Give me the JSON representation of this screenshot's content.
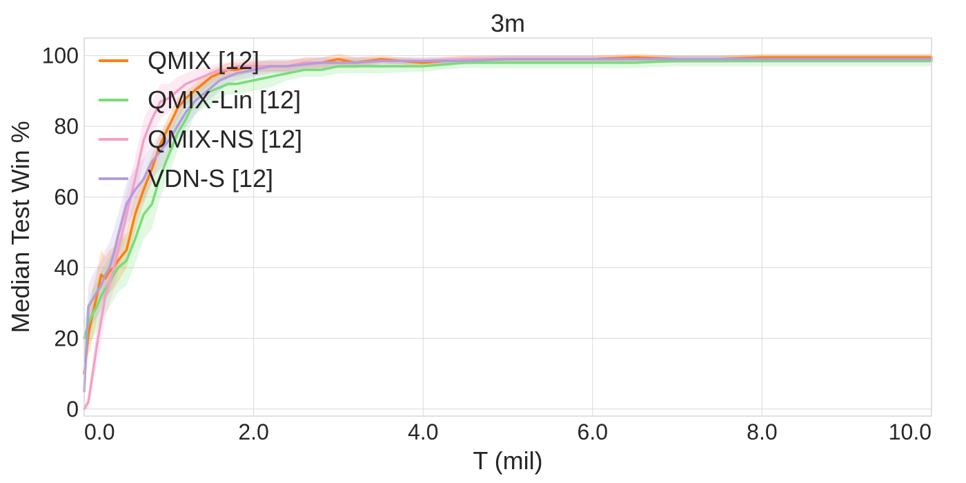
{
  "chart_data": {
    "type": "line",
    "title": "3m",
    "xlabel": "T (mil)",
    "ylabel": "Median Test Win %",
    "xlim": [
      0,
      10
    ],
    "ylim": [
      -2,
      105
    ],
    "xticks": [
      {
        "value": 0,
        "label": "0.0"
      },
      {
        "value": 2,
        "label": "2.0"
      },
      {
        "value": 4,
        "label": "4.0"
      },
      {
        "value": 6,
        "label": "6.0"
      },
      {
        "value": 8,
        "label": "8.0"
      },
      {
        "value": 10,
        "label": "10.0"
      }
    ],
    "yticks": [
      {
        "value": 0,
        "label": "0"
      },
      {
        "value": 20,
        "label": "20"
      },
      {
        "value": 40,
        "label": "40"
      },
      {
        "value": 60,
        "label": "60"
      },
      {
        "value": 80,
        "label": "80"
      },
      {
        "value": 100,
        "label": "100"
      }
    ],
    "grid": true,
    "legend_position": "top-left",
    "series": [
      {
        "name": "QMIX [12]",
        "color": "#ff7f0e",
        "x": [
          0,
          0.05,
          0.1,
          0.15,
          0.2,
          0.25,
          0.3,
          0.35,
          0.4,
          0.5,
          0.6,
          0.7,
          0.8,
          0.9,
          1.0,
          1.1,
          1.2,
          1.3,
          1.4,
          1.5,
          1.6,
          1.7,
          1.8,
          2.0,
          2.2,
          2.4,
          2.6,
          2.8,
          3.0,
          3.2,
          3.5,
          4.0,
          4.5,
          5.0,
          5.5,
          6.0,
          6.5,
          7.0,
          7.5,
          8.0,
          8.5,
          9.0,
          9.5,
          10.0
        ],
        "y": [
          10,
          21,
          27,
          32,
          38,
          37,
          39,
          40,
          42,
          45,
          55,
          62,
          68,
          75,
          80,
          85,
          88,
          90,
          92,
          94,
          95,
          96,
          96,
          97,
          97,
          97,
          98,
          98,
          99,
          98,
          99,
          98,
          99,
          99,
          99,
          99,
          99.5,
          99,
          99,
          99.5,
          99.5,
          99.5,
          99.5,
          99.5
        ],
        "band": [
          4,
          6,
          7,
          7,
          7,
          6,
          6,
          6,
          6,
          5,
          5,
          4,
          4,
          3,
          3,
          3,
          2,
          2,
          2,
          2,
          2,
          2,
          2,
          1.5,
          1.5,
          1.5,
          1.5,
          1.5,
          1.5,
          1.5,
          1,
          1,
          1,
          1,
          1,
          1,
          1,
          1,
          1,
          1,
          1,
          1,
          1,
          1
        ]
      },
      {
        "name": "QMIX-Lin [12]",
        "color": "#77dd77",
        "x": [
          0,
          0.05,
          0.1,
          0.15,
          0.2,
          0.25,
          0.3,
          0.35,
          0.4,
          0.5,
          0.6,
          0.7,
          0.8,
          0.9,
          1.0,
          1.1,
          1.2,
          1.3,
          1.4,
          1.5,
          1.6,
          1.7,
          1.8,
          2.0,
          2.2,
          2.4,
          2.6,
          2.8,
          3.0,
          3.2,
          3.5,
          4.0,
          4.5,
          5.0,
          5.5,
          6.0,
          6.5,
          7.0,
          7.5,
          8.0,
          8.5,
          9.0,
          9.5,
          10.0
        ],
        "y": [
          20,
          24,
          27,
          29,
          32,
          34,
          36,
          38,
          40,
          42,
          48,
          55,
          58,
          66,
          72,
          78,
          82,
          87,
          89,
          90,
          91,
          92,
          92,
          93,
          94,
          95,
          96,
          96,
          97,
          97,
          97,
          97,
          98,
          98,
          98,
          98,
          98,
          98.5,
          98.5,
          98.5,
          98.5,
          98.5,
          98.5,
          98.5
        ],
        "band": [
          5,
          6,
          7,
          7,
          7,
          7,
          7,
          7,
          7,
          7,
          7,
          7,
          7,
          6,
          6,
          5,
          5,
          4,
          4,
          4,
          3,
          3,
          3,
          3,
          3,
          2,
          2,
          2,
          2,
          2,
          2,
          1.5,
          1.5,
          1.5,
          1.5,
          1.5,
          1.5,
          1.5,
          1.5,
          1.5,
          1.5,
          1.5,
          1.5,
          1.5
        ]
      },
      {
        "name": "QMIX-NS [12]",
        "color": "#f4a0c8",
        "x": [
          0,
          0.05,
          0.1,
          0.15,
          0.2,
          0.25,
          0.3,
          0.35,
          0.4,
          0.5,
          0.6,
          0.7,
          0.8,
          0.9,
          1.0,
          1.1,
          1.2,
          1.3,
          1.4,
          1.5,
          1.6,
          1.7,
          1.8,
          2.0,
          2.2,
          2.4,
          2.6,
          2.8,
          3.0,
          3.2,
          3.5,
          4.0,
          4.5,
          5.0,
          5.5,
          6.0,
          6.5,
          7.0,
          7.5,
          8.0,
          8.5,
          9.0,
          9.5,
          10.0
        ],
        "y": [
          0,
          2,
          10,
          18,
          25,
          32,
          36,
          40,
          45,
          55,
          65,
          76,
          82,
          87,
          88,
          90,
          92,
          93,
          94,
          95,
          96,
          96,
          97,
          97,
          97,
          97,
          98,
          98,
          98,
          98,
          98.5,
          98.5,
          99,
          99,
          99,
          99,
          99,
          99,
          99,
          99,
          99,
          99,
          99,
          99
        ],
        "band": [
          1,
          2,
          4,
          5,
          6,
          6,
          6,
          6,
          6,
          6,
          6,
          6,
          5,
          5,
          4,
          4,
          3,
          3,
          3,
          2,
          2,
          2,
          2,
          2,
          1.5,
          1.5,
          1.5,
          1.5,
          1.5,
          1.5,
          1,
          1,
          1,
          1,
          1,
          1,
          1,
          1,
          1,
          1,
          1,
          1,
          1,
          1
        ]
      },
      {
        "name": "VDN-S [12]",
        "color": "#b39ddb",
        "x": [
          0,
          0.05,
          0.1,
          0.15,
          0.2,
          0.25,
          0.3,
          0.35,
          0.4,
          0.5,
          0.6,
          0.7,
          0.8,
          0.9,
          1.0,
          1.1,
          1.2,
          1.3,
          1.4,
          1.5,
          1.6,
          1.7,
          1.8,
          2.0,
          2.2,
          2.4,
          2.6,
          2.8,
          3.0,
          3.2,
          3.5,
          4.0,
          4.5,
          5.0,
          5.5,
          6.0,
          6.5,
          7.0,
          7.5,
          8.0,
          8.5,
          9.0,
          9.5,
          10.0
        ],
        "y": [
          5,
          29,
          31,
          33,
          35,
          38,
          40,
          44,
          49,
          58,
          62,
          65,
          70,
          73,
          76,
          80,
          84,
          87,
          89,
          91,
          93,
          94,
          95,
          96,
          97,
          97,
          97.5,
          98,
          98,
          98,
          98.5,
          98.5,
          98.5,
          99,
          99,
          99,
          99,
          99,
          99,
          99,
          99,
          99,
          99,
          99
        ],
        "band": [
          4,
          6,
          7,
          7,
          7,
          7,
          7,
          7,
          6,
          6,
          6,
          6,
          5,
          5,
          5,
          4,
          4,
          4,
          3,
          3,
          3,
          2,
          2,
          2,
          2,
          2,
          1.5,
          1.5,
          1.5,
          1.5,
          1,
          1,
          1,
          1,
          1,
          1,
          1,
          1,
          1,
          1,
          1,
          1,
          1,
          1
        ]
      }
    ]
  }
}
